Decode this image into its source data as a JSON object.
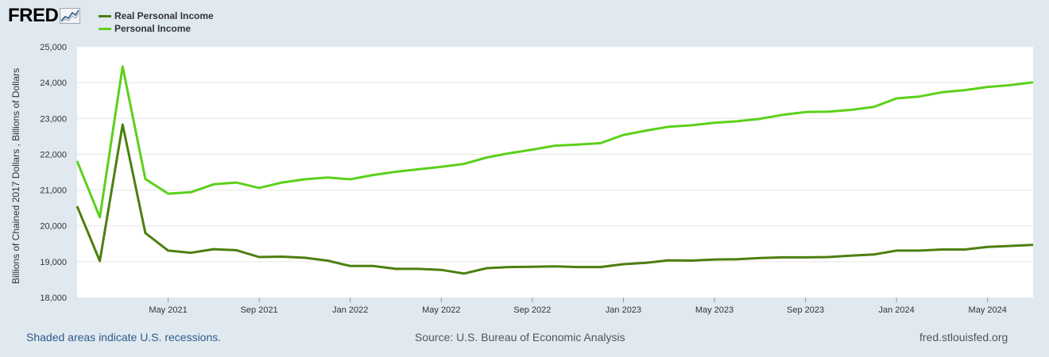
{
  "logo": {
    "text": "FRED"
  },
  "legend": [
    {
      "name": "Real Personal Income",
      "color": "#4c7f10"
    },
    {
      "name": "Personal Income",
      "color": "#5cd01a"
    }
  ],
  "footer": {
    "recession_note": "Shaded areas indicate U.S. recessions.",
    "source": "Source: U.S. Bureau of Economic Analysis",
    "site": "fred.stlouisfed.org"
  },
  "chart_data": {
    "type": "line",
    "ylabel": "Billions of Chained 2017 Dollars , Billions of Dollars",
    "ylim": [
      18000,
      25000
    ],
    "yticks": [
      "18,000",
      "19,000",
      "20,000",
      "21,000",
      "22,000",
      "23,000",
      "24,000",
      "25,000"
    ],
    "x_range": [
      "2021-01",
      "2024-07"
    ],
    "xticks": [
      {
        "date": "2021-05",
        "label": "May 2021"
      },
      {
        "date": "2021-09",
        "label": "Sep 2021"
      },
      {
        "date": "2022-01",
        "label": "Jan 2022"
      },
      {
        "date": "2022-05",
        "label": "May 2022"
      },
      {
        "date": "2022-09",
        "label": "Sep 2022"
      },
      {
        "date": "2023-01",
        "label": "Jan 2023"
      },
      {
        "date": "2023-05",
        "label": "May 2023"
      },
      {
        "date": "2023-09",
        "label": "Sep 2023"
      },
      {
        "date": "2024-01",
        "label": "Jan 2024"
      },
      {
        "date": "2024-05",
        "label": "May 2024"
      }
    ],
    "grid": true,
    "x": [
      "2021-01",
      "2021-02",
      "2021-03",
      "2021-04",
      "2021-05",
      "2021-06",
      "2021-07",
      "2021-08",
      "2021-09",
      "2021-10",
      "2021-11",
      "2021-12",
      "2022-01",
      "2022-02",
      "2022-03",
      "2022-04",
      "2022-05",
      "2022-06",
      "2022-07",
      "2022-08",
      "2022-09",
      "2022-10",
      "2022-11",
      "2022-12",
      "2023-01",
      "2023-02",
      "2023-03",
      "2023-04",
      "2023-05",
      "2023-06",
      "2023-07",
      "2023-08",
      "2023-09",
      "2023-10",
      "2023-11",
      "2023-12",
      "2024-01",
      "2024-02",
      "2024-03",
      "2024-04",
      "2024-05",
      "2024-06",
      "2024-07"
    ],
    "series": [
      {
        "name": "Real Personal Income",
        "color": "#4c7f10",
        "values": [
          20550,
          19020,
          22830,
          19800,
          19310,
          19250,
          19350,
          19320,
          19130,
          19140,
          19110,
          19030,
          18880,
          18880,
          18800,
          18800,
          18770,
          18670,
          18820,
          18850,
          18860,
          18870,
          18850,
          18850,
          18930,
          18970,
          19040,
          19030,
          19060,
          19070,
          19100,
          19120,
          19120,
          19130,
          19170,
          19200,
          19310,
          19310,
          19340,
          19340,
          19410,
          19440,
          19470
        ]
      },
      {
        "name": "Personal Income",
        "color": "#5cd01a",
        "values": [
          21810,
          20240,
          24450,
          21310,
          20900,
          20940,
          21160,
          21210,
          21060,
          21210,
          21300,
          21350,
          21300,
          21420,
          21510,
          21580,
          21650,
          21730,
          21910,
          22030,
          22130,
          22240,
          22270,
          22310,
          22540,
          22660,
          22770,
          22810,
          22880,
          22920,
          22990,
          23100,
          23180,
          23190,
          23240,
          23320,
          23560,
          23610,
          23730,
          23790,
          23880,
          23930,
          24010
        ]
      }
    ]
  }
}
